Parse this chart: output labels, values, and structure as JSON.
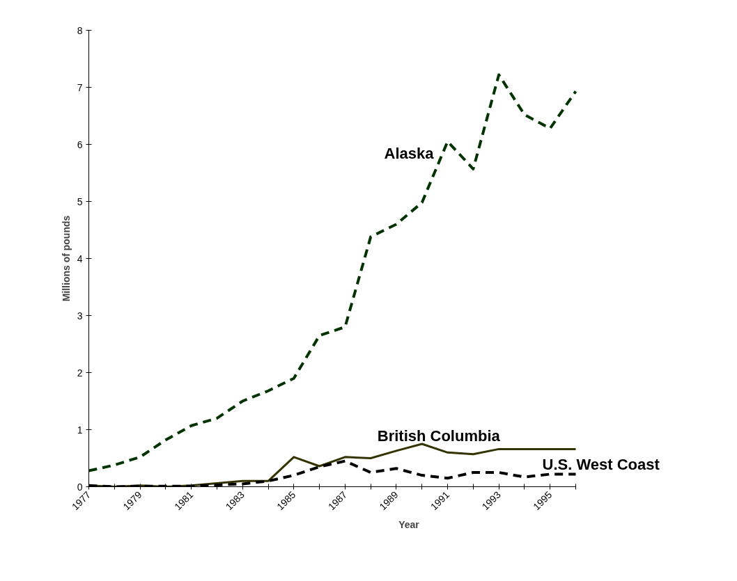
{
  "chart_data": {
    "type": "line",
    "xlabel": "Year",
    "ylabel": "Millions of pounds",
    "x": [
      1977,
      1978,
      1979,
      1980,
      1981,
      1982,
      1983,
      1984,
      1985,
      1986,
      1987,
      1988,
      1989,
      1990,
      1991,
      1992,
      1993,
      1994,
      1995,
      1996
    ],
    "series": [
      {
        "name": "Alaska",
        "color": "#003300",
        "line_style": "dashed",
        "values": [
          0.28,
          0.38,
          0.52,
          0.82,
          1.07,
          1.2,
          1.5,
          1.68,
          1.9,
          2.65,
          2.8,
          4.38,
          4.6,
          4.98,
          6.05,
          5.57,
          7.22,
          6.52,
          6.28,
          6.93
        ]
      },
      {
        "name": "British Columbia",
        "color": "#333300",
        "line_style": "solid",
        "values": [
          0.02,
          0.0,
          0.02,
          0.0,
          0.02,
          0.06,
          0.1,
          0.1,
          0.52,
          0.36,
          0.52,
          0.5,
          0.63,
          0.75,
          0.6,
          0.57,
          0.66,
          0.66,
          0.66,
          0.66
        ]
      },
      {
        "name": "U.S. West Coast",
        "color": "#000000",
        "line_style": "dashed",
        "values": [
          0.02,
          0.0,
          0.01,
          0.01,
          0.01,
          0.03,
          0.05,
          0.1,
          0.2,
          0.35,
          0.45,
          0.25,
          0.32,
          0.2,
          0.15,
          0.25,
          0.25,
          0.17,
          0.22,
          0.22
        ]
      }
    ],
    "xlim": [
      1977,
      1996
    ],
    "ylim": [
      0,
      8
    ],
    "xticks": [
      1977,
      {
        "value": 1978,
        "label": null
      },
      1979,
      {
        "value": 1980,
        "label": null
      },
      1981,
      {
        "value": 1982,
        "label": null
      },
      1983,
      {
        "value": 1984,
        "label": null
      },
      1985,
      {
        "value": 1986,
        "label": null
      },
      1987,
      {
        "value": 1988,
        "label": null
      },
      1989,
      {
        "value": 1990,
        "label": null
      },
      1991,
      {
        "value": 1992,
        "label": null
      },
      1993,
      {
        "value": 1994,
        "label": null
      },
      1995,
      {
        "value": 1996,
        "label": null
      }
    ],
    "yticks": [
      0,
      1,
      2,
      3,
      4,
      5,
      6,
      7,
      8
    ],
    "grid": false,
    "marker": "none"
  }
}
